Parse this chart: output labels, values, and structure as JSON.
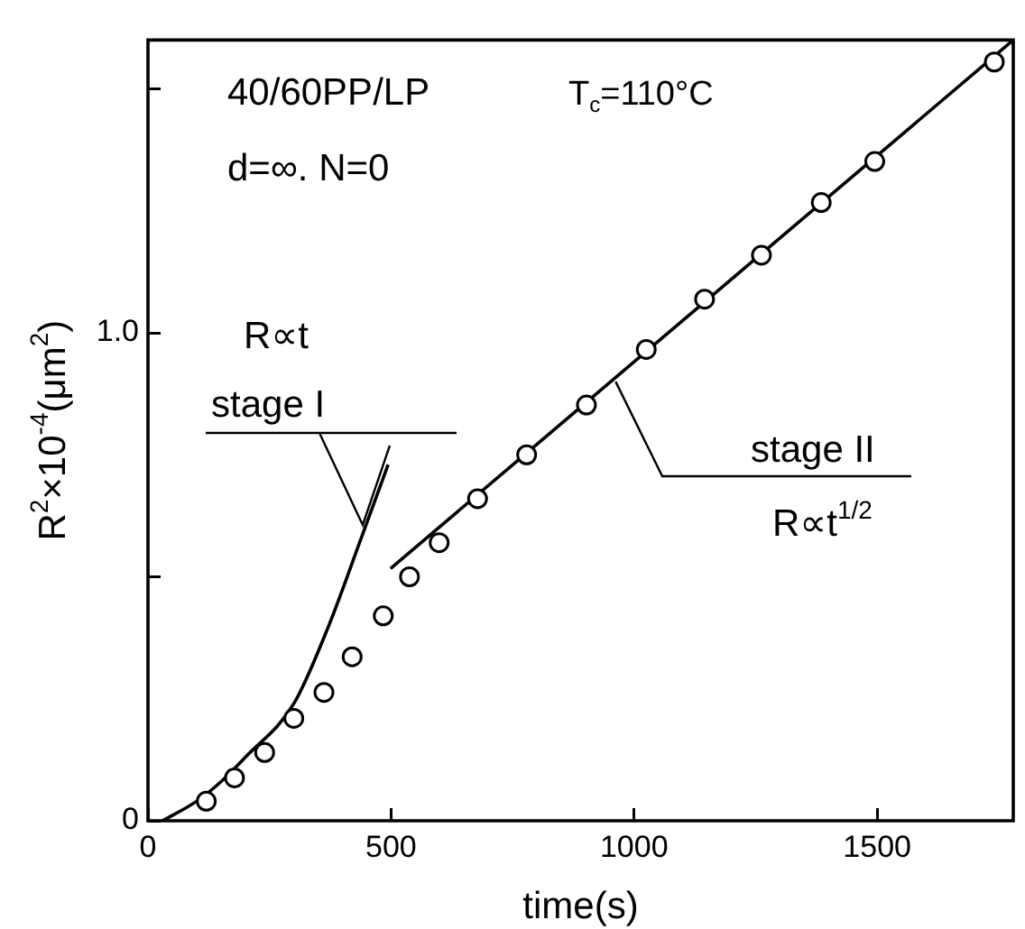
{
  "chart_data": {
    "type": "scatter",
    "xlabel": "time(s)",
    "ylabel": "R$^{2}$×10$^{-4}$(μm$^{2}$)",
    "xlim": [
      0,
      1780
    ],
    "ylim": [
      0,
      1.6
    ],
    "xticks": [
      0,
      500,
      1000,
      1500
    ],
    "yticks": [
      0,
      {
        "value": 0.5,
        "label": null
      },
      {
        "value": 1,
        "label": "1.0"
      },
      {
        "value": 1.5,
        "label": null
      }
    ],
    "grid": false,
    "legend": false,
    "marker": "circle",
    "series": [
      {
        "color": "#000000",
        "x": [
          120,
          178,
          240,
          300,
          362,
          420,
          484,
          538,
          599,
          678,
          779,
          902,
          1025,
          1145,
          1262,
          1385,
          1495,
          1741
        ],
        "values": [
          0.04,
          0.088,
          0.14,
          0.21,
          0.263,
          0.336,
          0.42,
          0.5,
          0.57,
          0.66,
          0.75,
          0.852,
          0.966,
          1.069,
          1.159,
          1.267,
          1.351,
          1.555
        ]
      },
      {
        "type": "line",
        "color": "#000000",
        "marker": "none",
        "x": [
          30,
          100,
          150,
          200,
          300,
          372,
          439,
          494
        ],
        "values": [
          0,
          0.04,
          0.08,
          0.13,
          0.24,
          0.4,
          0.58,
          0.73
        ]
      },
      {
        "type": "line",
        "color": "#000000",
        "marker": "none",
        "x": [
          499,
          1780
        ],
        "values": [
          0.517,
          1.6
        ]
      }
    ],
    "annotations": [
      "40/60PP/LP",
      "T$_{c}$=110°C",
      "d=∞. N=0",
      "R∝t",
      "stage I",
      {
        "text": "stage II",
        "x": 962,
        "y": 0.9
      },
      "R∝t$^{1/2}$"
    ]
  }
}
